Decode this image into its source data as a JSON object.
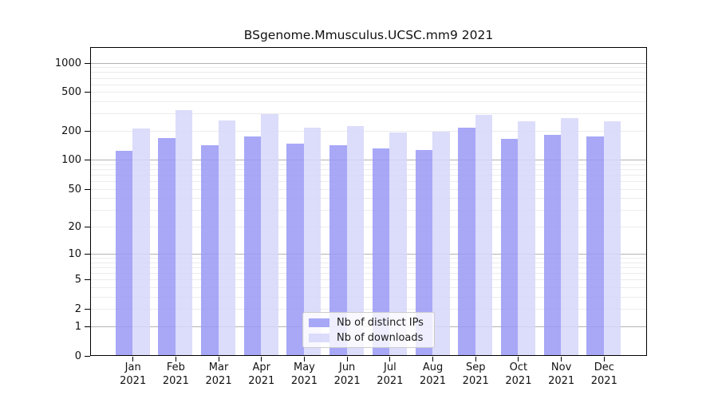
{
  "chart_data": {
    "type": "bar",
    "title": "BSgenome.Mmusculus.UCSC.mm9 2021",
    "categories": [
      "Jan",
      "Feb",
      "Mar",
      "Apr",
      "May",
      "Jun",
      "Jul",
      "Aug",
      "Sep",
      "Oct",
      "Nov",
      "Dec"
    ],
    "category_year": "2021",
    "series": [
      {
        "name": "Nb of distinct IPs",
        "color": "#9999f6",
        "values": [
          123,
          166,
          140,
          172,
          146,
          140,
          130,
          126,
          215,
          163,
          180,
          173
        ]
      },
      {
        "name": "Nb of downloads",
        "color": "#d6d6fa",
        "values": [
          208,
          325,
          255,
          292,
          215,
          220,
          190,
          195,
          290,
          249,
          265,
          249
        ]
      }
    ],
    "xlabel": "",
    "ylabel": "",
    "yscale": "log1p",
    "y_ticks": [
      1000,
      500,
      200,
      100,
      50,
      20,
      10,
      5,
      2,
      1,
      0
    ],
    "ylim": [
      0,
      1460
    ],
    "grid": "horizontal",
    "legend_position": "bottom-center"
  },
  "colors": {
    "grid_major": "#b3b3b3",
    "grid_minor": "#ececec",
    "frame": "#000000",
    "text": "#111111",
    "legend_border": "#cccccc"
  }
}
